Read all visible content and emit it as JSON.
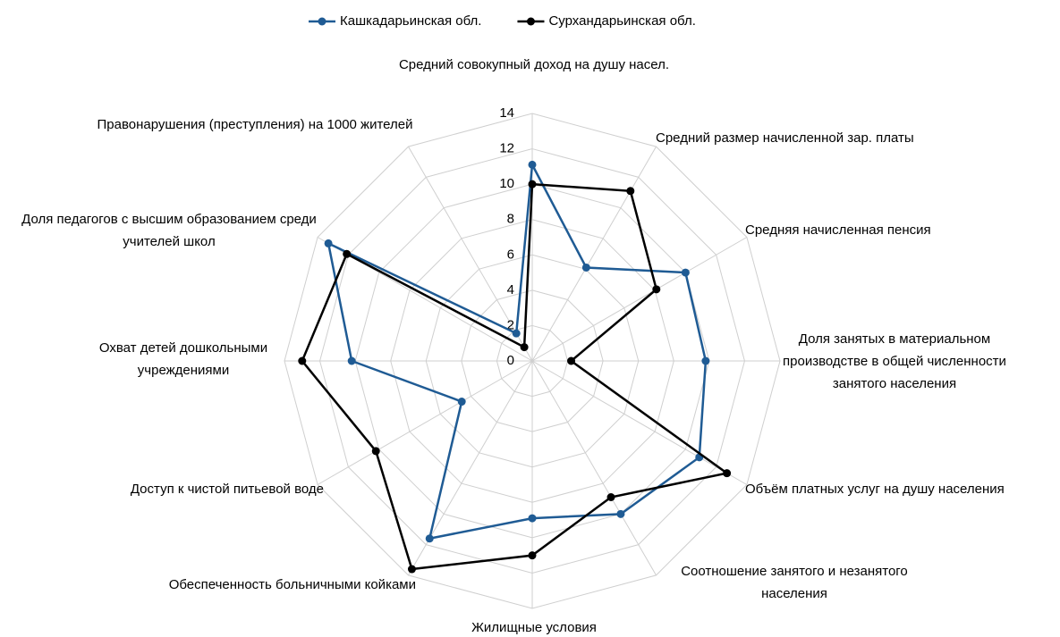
{
  "chart_data": {
    "type": "radar",
    "categories": [
      "Средний совокупный доход на душу насел.",
      "Средний размер начисленной зар. платы",
      "Средняя начисленная пенсия",
      "Доля занятых в материальном производстве в общей численности занятого населения",
      "Объём платных услуг на душу населения",
      "Соотношение занятого и незанятого населения",
      "Жилищные условия",
      "Обеспеченность больничными койками",
      "Доступ к чистой питьевой воде",
      "Охват детей дошкольными учреждениями",
      "Доля педагогов с высшим образованием среди учителей школ",
      "Правонарушения (преступления) на 1000 жителей"
    ],
    "series": [
      {
        "name": "Кашкадарьинская обл.",
        "color": "#1f5b94",
        "values": [
          11.1,
          6.1,
          10,
          9.8,
          10.9,
          10,
          8.9,
          11.6,
          4.6,
          10.2,
          13.3,
          1.8
        ]
      },
      {
        "name": "Сурхандарьинская обл.",
        "color": "#000000",
        "values": [
          10,
          11.1,
          8.1,
          2.2,
          12.7,
          8.9,
          11,
          13.6,
          10.2,
          13,
          12.1,
          0.9
        ]
      }
    ],
    "ylim": [
      0,
      14
    ],
    "yticks": [
      0,
      2,
      4,
      6,
      8,
      10,
      12,
      14
    ],
    "grid": true,
    "legend": "top"
  }
}
